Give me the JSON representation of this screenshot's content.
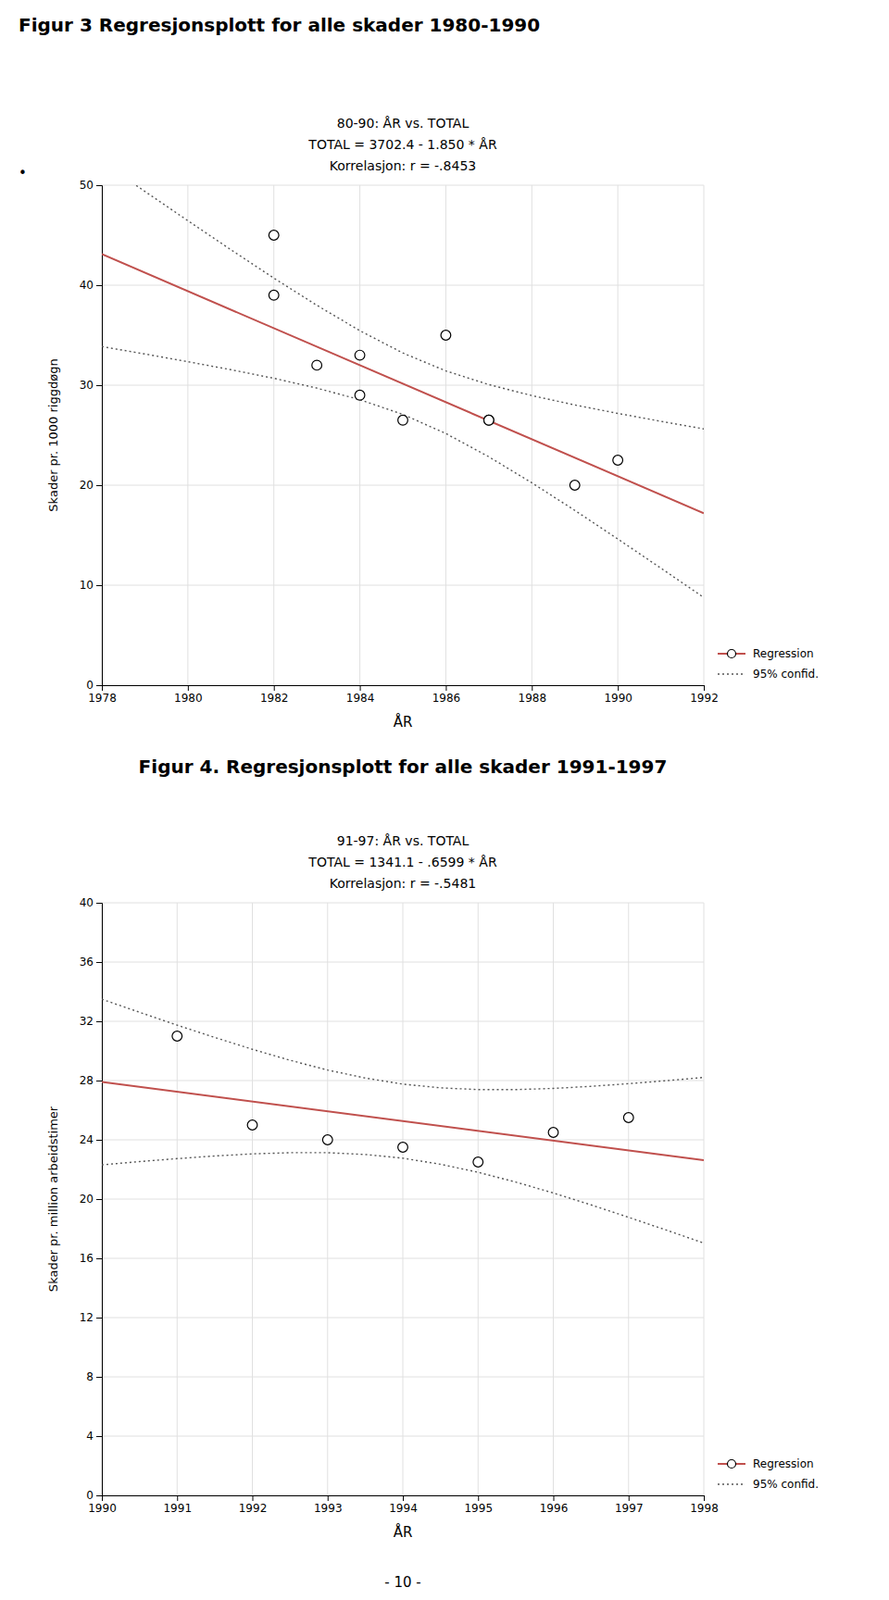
{
  "chart_data": [
    {
      "type": "scatter",
      "title": "Figur 3 Regresjonsplott for alle skader 1980-1990",
      "subtitle": [
        "80-90: ÅR vs. TOTAL",
        "TOTAL = 3702.4 - 1.850 * ÅR",
        "Korrelasjon: r = -.8453"
      ],
      "annotations": [
        "•"
      ],
      "xlabel": "ÅR",
      "ylabel": "Skader pr. 1000 riggdøgn",
      "series": [
        {
          "type": "scatter",
          "marker": "circle",
          "color": "white",
          "x": [
            1982,
            1982,
            1983,
            1984,
            1984,
            1985,
            1986,
            1987,
            1987,
            1989,
            1990
          ],
          "values": [
            45.0,
            39.0,
            32.0,
            29.0,
            33.0,
            26.5,
            35.0,
            26.5,
            26.5,
            20.0,
            22.5
          ]
        },
        {
          "name": "Regression",
          "type": "line",
          "color": "#c0504d",
          "line_style": "solid",
          "x": [
            1978,
            1992
          ],
          "values": [
            43.1,
            17.2
          ]
        },
        {
          "name": "95% confid.",
          "type": "line",
          "color": "#555555",
          "line_style": "dotted",
          "x": [
            1978.8,
            1979,
            1980,
            1981,
            1982,
            1983,
            1984,
            1985,
            1986,
            1987,
            1988,
            1989,
            1990,
            1991,
            1992
          ],
          "values": [
            49.97,
            49.38,
            46.45,
            43.55,
            40.71,
            37.99,
            35.45,
            33.22,
            31.43,
            30.06,
            28.96,
            28.02,
            27.18,
            26.39,
            25.63
          ]
        },
        {
          "name": "95% confid.",
          "type": "line",
          "color": "#555555",
          "line_style": "dotted",
          "x": [
            1978,
            1979,
            1980,
            1981,
            1982,
            1983,
            1984,
            1985,
            1986,
            1987,
            1988,
            1989,
            1990,
            1991,
            1992
          ],
          "values": [
            33.86,
            33.12,
            32.35,
            31.55,
            30.69,
            29.71,
            28.55,
            27.08,
            25.17,
            22.84,
            20.24,
            17.48,
            14.62,
            11.71,
            8.77
          ]
        }
      ],
      "xlim": [
        1978,
        1992
      ],
      "ylim": [
        0,
        50
      ],
      "xticks": [
        1978,
        1980,
        1982,
        1984,
        1986,
        1988,
        1990,
        1992
      ],
      "yticks": [
        0,
        10,
        20,
        30,
        40,
        50
      ],
      "grid": true,
      "legend": "right"
    },
    {
      "type": "scatter",
      "title": "Figur 4. Regresjonsplott for alle skader 1991-1997",
      "subtitle": [
        "91-97: ÅR vs. TOTAL",
        "TOTAL = 1341.1 - .6599 * ÅR",
        "Korrelasjon: r = -.5481"
      ],
      "annotations": [
        "- 10 -"
      ],
      "xlabel": "ÅR",
      "ylabel": "Skader pr. million arbeidstimer",
      "series": [
        {
          "type": "scatter",
          "marker": "circle",
          "color": "white",
          "x": [
            1991,
            1992,
            1993,
            1994,
            1995,
            1996,
            1997
          ],
          "values": [
            31.0,
            25.0,
            24.0,
            23.5,
            22.5,
            24.5,
            25.5
          ]
        },
        {
          "name": "Regression",
          "type": "line",
          "color": "#c0504d",
          "line_style": "solid",
          "x": [
            1990,
            1998
          ],
          "values": [
            27.899,
            22.6198
          ]
        },
        {
          "name": "95% confid.",
          "type": "line",
          "color": "#555555",
          "line_style": "dotted",
          "x": [
            1990,
            1990.5,
            1991,
            1991.5,
            1992,
            1992.5,
            1993,
            1993.5,
            1994,
            1994.5,
            1995,
            1995.5,
            1996,
            1996.5,
            1997,
            1997.5,
            1998
          ],
          "values": [
            33.49,
            32.61,
            31.74,
            30.91,
            30.11,
            29.37,
            28.71,
            28.17,
            27.76,
            27.51,
            27.39,
            27.39,
            27.47,
            27.61,
            27.79,
            27.99,
            28.21
          ]
        },
        {
          "name": "95% confid.",
          "type": "line",
          "color": "#555555",
          "line_style": "dotted",
          "x": [
            1990,
            1990.5,
            1991,
            1991.5,
            1992,
            1992.5,
            1993,
            1993.5,
            1994,
            1994.5,
            1995,
            1995.5,
            1996,
            1996.5,
            1997,
            1997.5,
            1998
          ],
          "values": [
            22.31,
            22.53,
            22.73,
            22.91,
            23.05,
            23.13,
            23.13,
            23.01,
            22.76,
            22.35,
            21.81,
            21.15,
            20.41,
            19.61,
            18.77,
            17.91,
            17.03
          ]
        }
      ],
      "xlim": [
        1990,
        1998
      ],
      "ylim": [
        0,
        40
      ],
      "xticks": [
        1990,
        1991,
        1992,
        1993,
        1994,
        1995,
        1996,
        1997,
        1998
      ],
      "yticks": [
        0,
        4,
        8,
        12,
        16,
        20,
        24,
        28,
        32,
        36,
        40
      ],
      "grid": true,
      "legend": "right"
    }
  ]
}
